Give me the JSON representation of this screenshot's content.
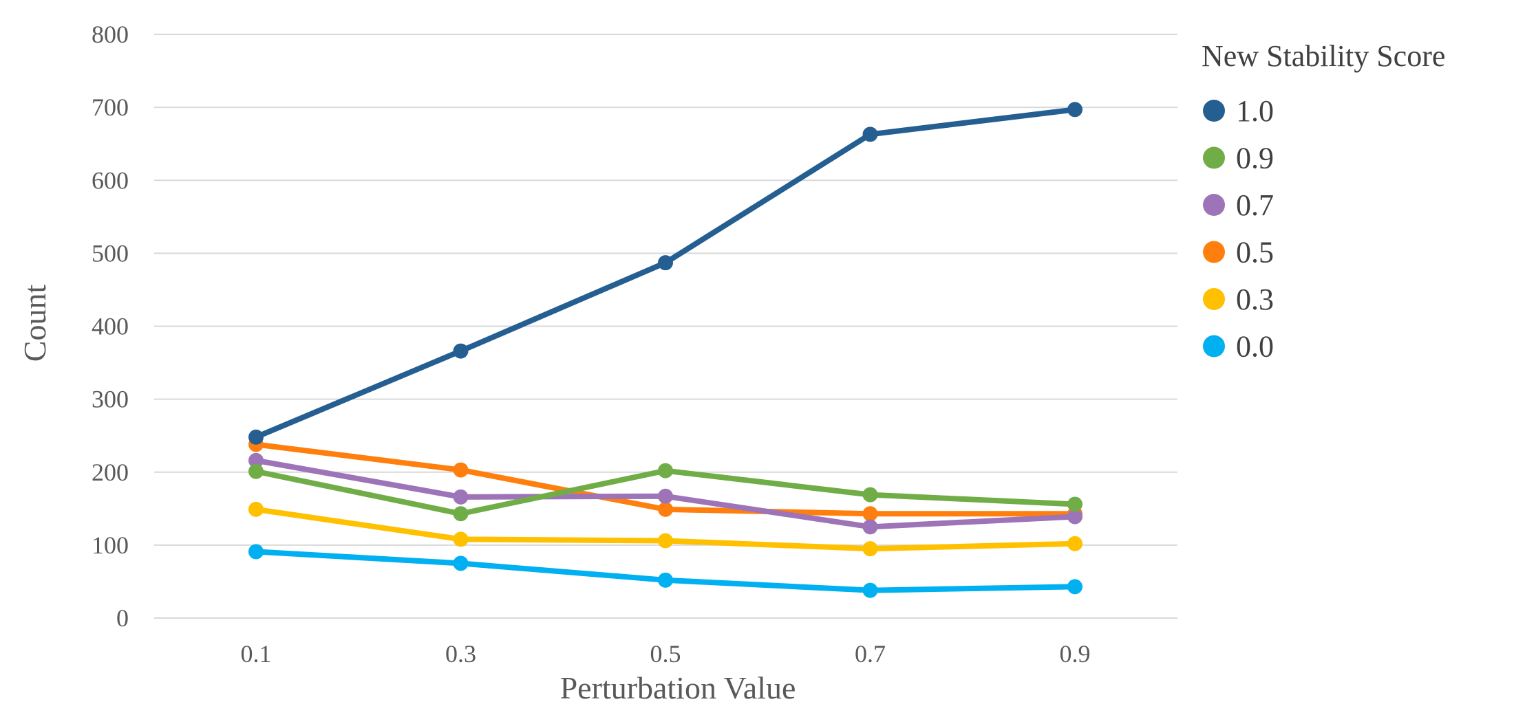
{
  "chart_data": {
    "type": "line",
    "title": "",
    "xlabel": "Perturbation Value",
    "ylabel": "Count",
    "x": [
      "0.1",
      "0.3",
      "0.5",
      "0.7",
      "0.9"
    ],
    "ylim": [
      0,
      800
    ],
    "yticks": [
      "0",
      "100",
      "200",
      "300",
      "400",
      "500",
      "600",
      "700",
      "800"
    ],
    "grid": true,
    "legend_title": "New Stability Score",
    "legend_position": "right",
    "series": [
      {
        "name": "1.0",
        "color": "#255E91",
        "values": [
          248,
          366,
          487,
          663,
          697
        ]
      },
      {
        "name": "0.9",
        "color": "#70AD47",
        "values": [
          201,
          143,
          202,
          169,
          156
        ]
      },
      {
        "name": "0.7",
        "color": "#9E74B8",
        "values": [
          216,
          166,
          167,
          125,
          139
        ]
      },
      {
        "name": "0.5",
        "color": "#FF7F0E",
        "values": [
          238,
          203,
          149,
          143,
          143
        ]
      },
      {
        "name": "0.3",
        "color": "#FFC000",
        "values": [
          149,
          108,
          106,
          95,
          102
        ]
      },
      {
        "name": "0.0",
        "color": "#00B0F0",
        "values": [
          91,
          75,
          52,
          38,
          43
        ]
      }
    ]
  }
}
